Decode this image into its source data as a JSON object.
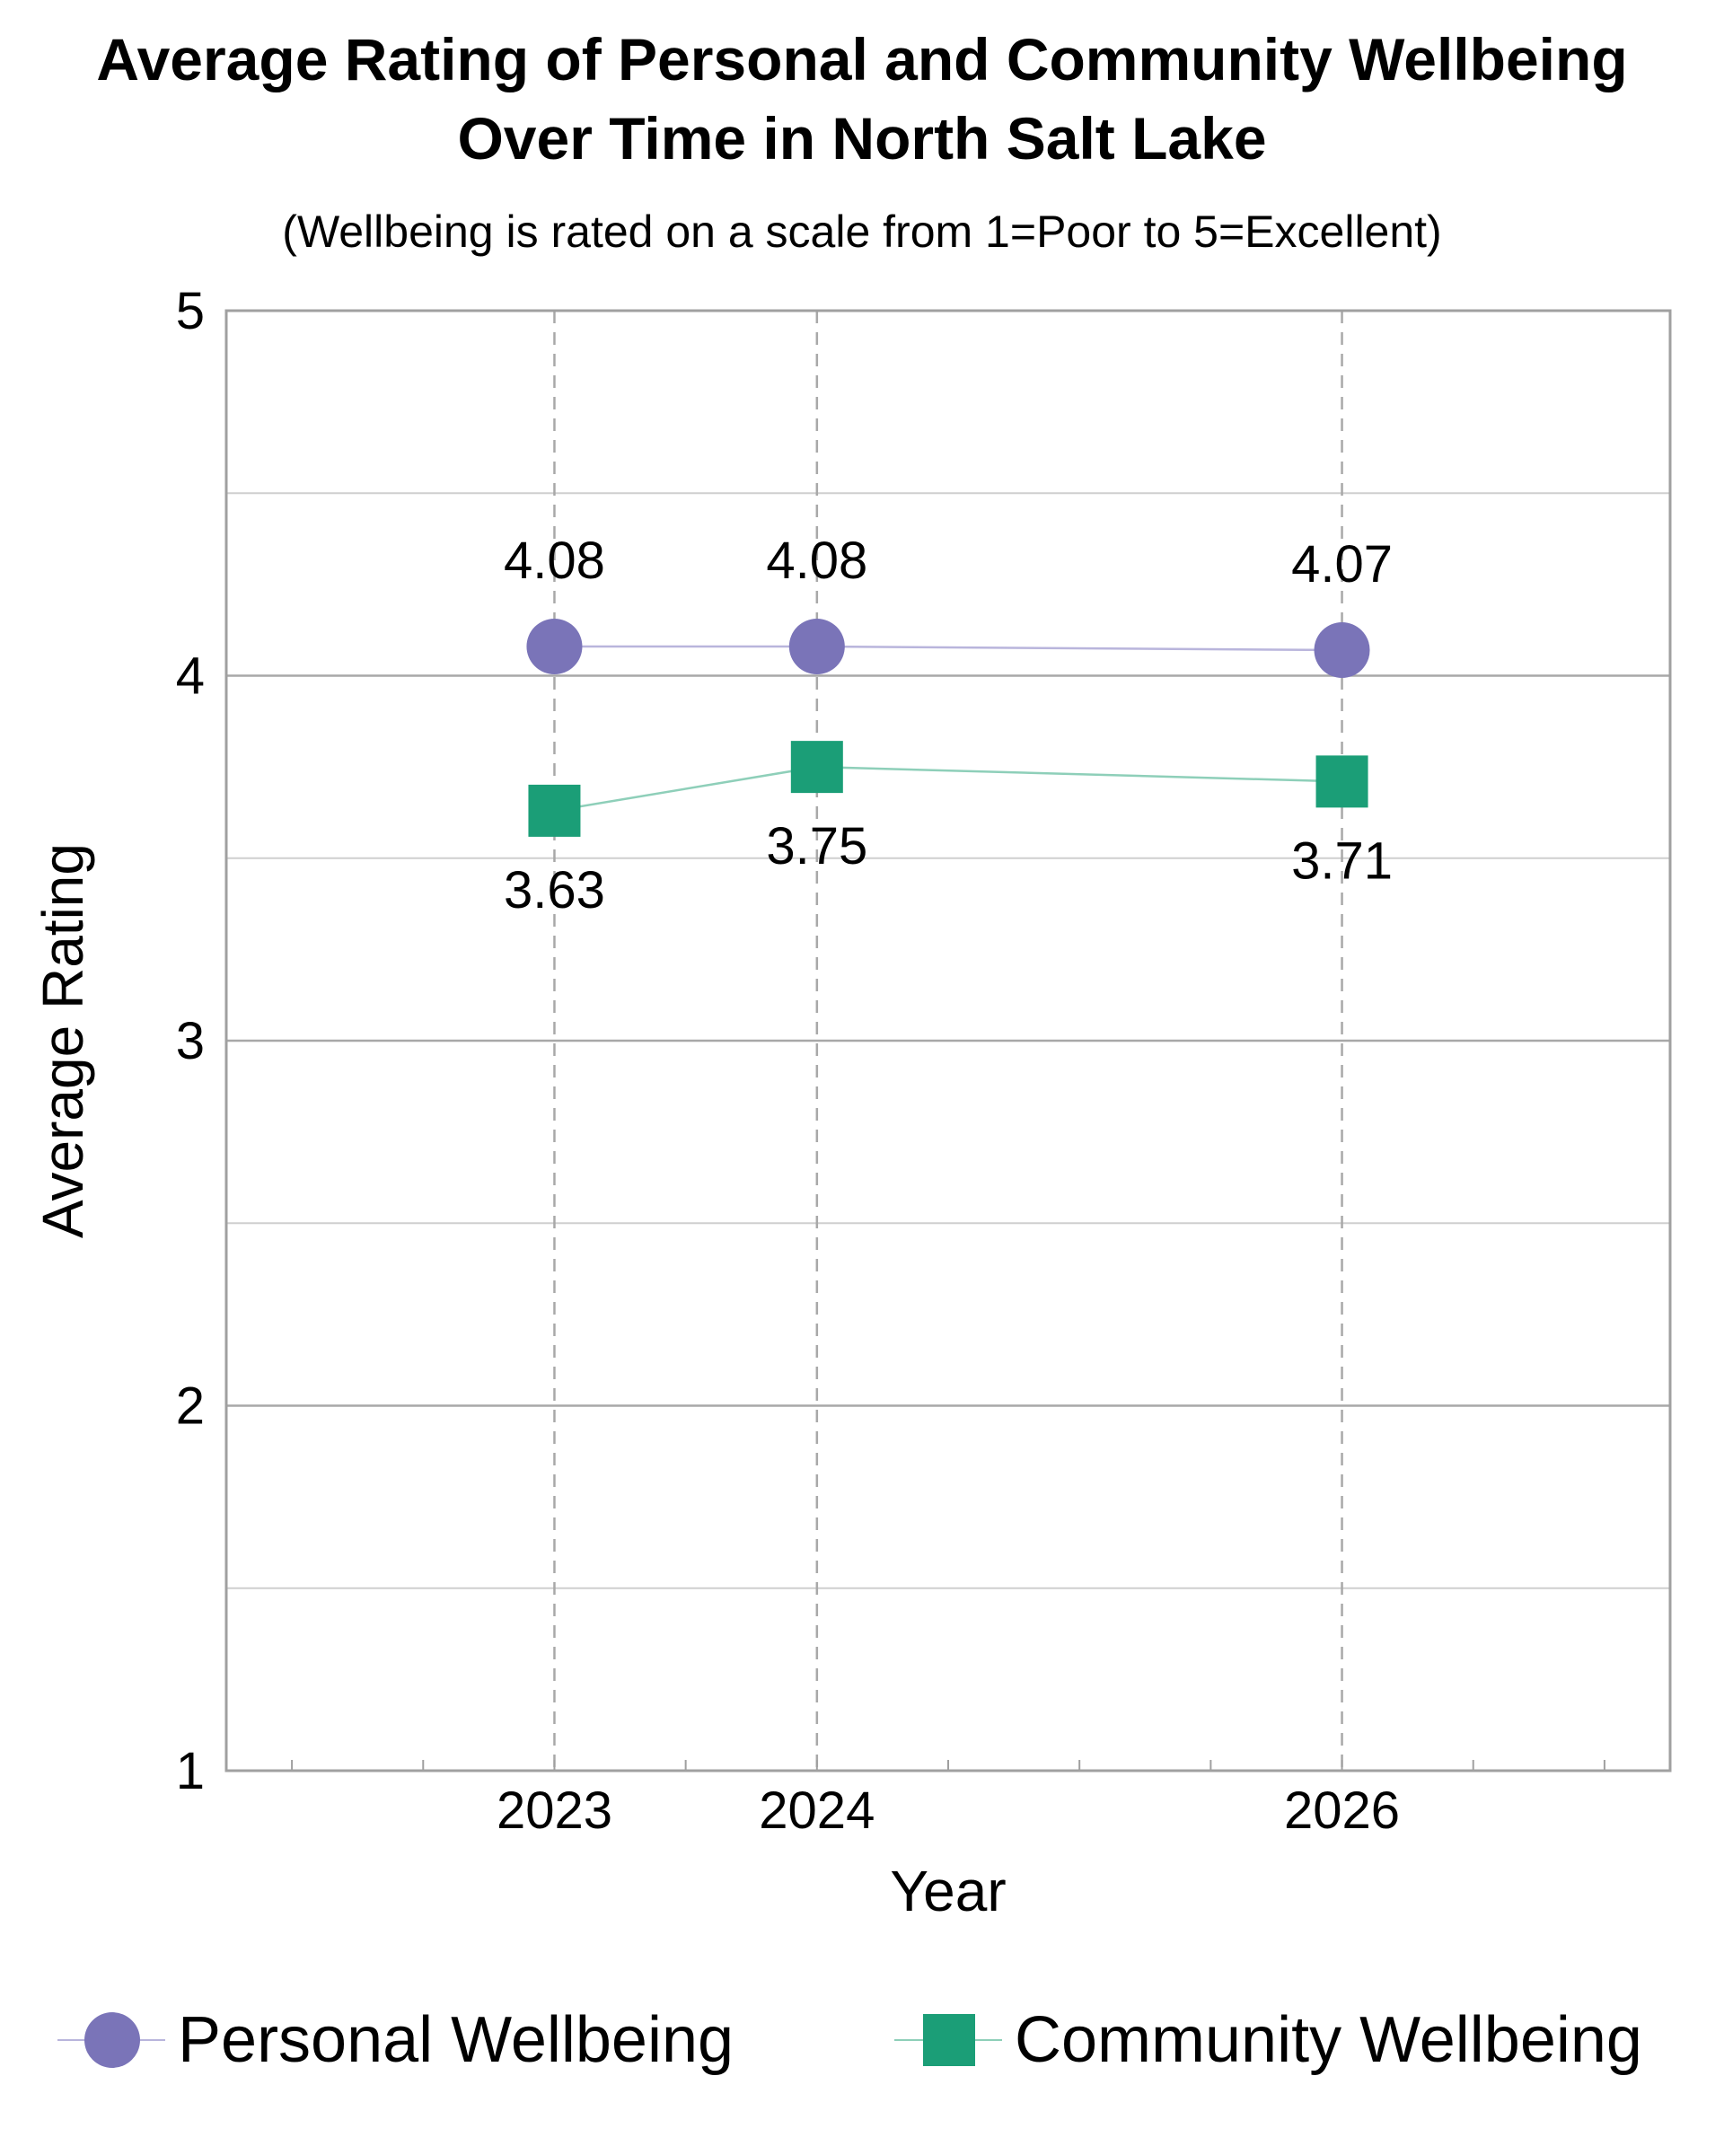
{
  "chart_data": {
    "type": "line",
    "title": [
      "Average Rating of Personal and Community Wellbeing",
      "Over Time in North Salt Lake"
    ],
    "subtitle": "(Wellbeing is rated on a scale from 1=Poor to 5=Excellent)",
    "xlabel": "Year",
    "ylabel": "Average Rating",
    "x": [
      "2023",
      "2024",
      "2026"
    ],
    "x_numeric": [
      2023,
      2024,
      2026
    ],
    "xlim": [
      2021.75,
      2027.25
    ],
    "ylim": [
      1,
      5
    ],
    "yticks": [
      "1",
      "2",
      "3",
      "4",
      "5"
    ],
    "grid": true,
    "legend_position": "bottom",
    "series": [
      {
        "name": "Personal Wellbeing",
        "values": [
          4.08,
          4.08,
          4.07
        ],
        "labels": [
          "4.08",
          "4.08",
          "4.07"
        ],
        "marker": "circle",
        "color": "#7a74b8",
        "line_color": "#b9b5dc"
      },
      {
        "name": "Community Wellbeing",
        "values": [
          3.63,
          3.75,
          3.71
        ],
        "labels": [
          "3.63",
          "3.75",
          "3.71"
        ],
        "marker": "square",
        "color": "#1b9e77",
        "line_color": "#8ecfb9"
      }
    ]
  }
}
